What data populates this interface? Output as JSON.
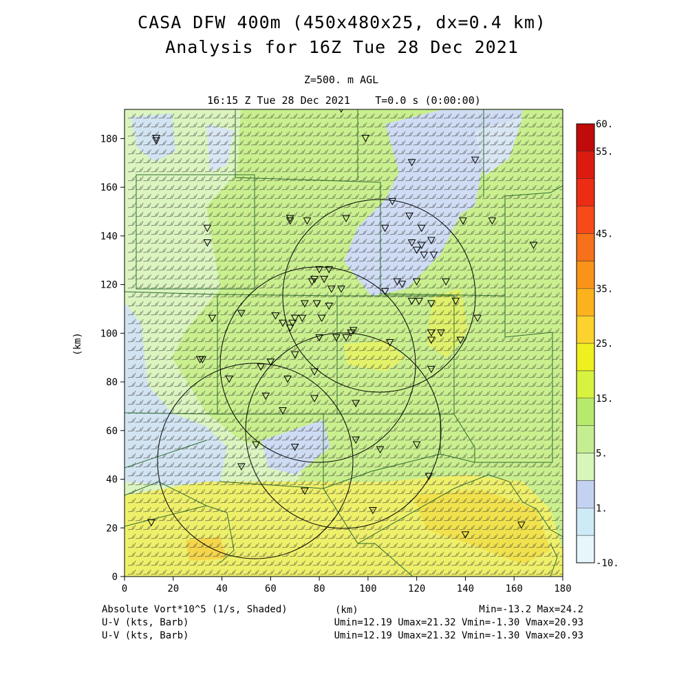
{
  "header": {
    "title_line1": "CASA DFW 400m (450x480x25, dx=0.4 km)",
    "title_line2": "Analysis for 16Z Tue 28 Dec 2021",
    "level": "Z=500. m AGL",
    "valid_time": "16:15 Z Tue 28 Dec 2021",
    "forecast_time": "T=0.0 s (0:00:00)"
  },
  "footer": {
    "field_label": "Absolute Vort*10^5 (1/s, Shaded)",
    "xunit_label": "(km)",
    "min_max": "Min=-13.2 Max=24.2",
    "wind1_label": "U-V (kts, Barb)",
    "wind1_stats": "Umin=12.19 Umax=21.32 Vmin=-1.30 Vmax=20.93",
    "wind2_label": "U-V (kts, Barb)",
    "wind2_stats": "Umin=12.19 Umax=21.32 Vmin=-1.30 Vmax=20.93"
  },
  "colorbar": {
    "levels": [
      "-10.",
      "",
      "1.",
      "",
      "5.",
      "",
      "15.",
      "",
      "25.",
      "",
      "35.",
      "",
      "45.",
      "",
      "",
      "55.",
      "60."
    ],
    "colors": [
      "#e6f6fb",
      "#cdeaf7",
      "#c4d2f2",
      "#d6f6ba",
      "#c5ee92",
      "#b6ea6d",
      "#d8f240",
      "#f0f020",
      "#fcd22e",
      "#fbb21c",
      "#f9931a",
      "#f7701a",
      "#f64a19",
      "#ec2d13",
      "#dc1b10",
      "#c00b0a"
    ]
  },
  "chart_data": {
    "type": "heatmap",
    "title": "CASA DFW 400m (450x480x25, dx=0.4 km) Analysis for 16Z Tue 28 Dec 2021",
    "field": "Absolute Vort*10^5 (1/s, Shaded)",
    "xlabel": "(km)",
    "ylabel": "(km)",
    "xlim": [
      0,
      180
    ],
    "ylim": [
      0,
      192
    ],
    "xticks": [
      "0",
      "20",
      "40",
      "60",
      "80",
      "100",
      "120",
      "140",
      "160",
      "180"
    ],
    "yticks": [
      "0",
      "20",
      "40",
      "60",
      "80",
      "100",
      "120",
      "140",
      "160",
      "180"
    ],
    "field_min": -13.2,
    "field_max": 24.2,
    "wind_barb_summary": {
      "umin": 12.19,
      "umax": 21.32,
      "vmin": -1.3,
      "vmax": 20.93,
      "units": "kts"
    },
    "regions": [
      {
        "label": "background",
        "value_class": "5 to 10",
        "color": "#c9ef8e"
      },
      {
        "label": "west low",
        "value_class": "1 to 5",
        "color": "#d9f4bb"
      },
      {
        "label": "northeast band",
        "value_class": "-10 to 1",
        "color": "#cfdcf4"
      },
      {
        "label": "south high",
        "value_class": "15 to 20",
        "color": "#eef065"
      }
    ],
    "radars": [
      {
        "cx": 98.5,
        "cy": 115,
        "r": 39.5
      },
      {
        "cx": 69,
        "cy": 87,
        "r": 40
      },
      {
        "cx": 80,
        "cy": 59,
        "r": 40
      },
      {
        "cx": 54,
        "cy": 47,
        "r": 40
      }
    ],
    "stations": [
      [
        13,
        180
      ],
      [
        13,
        179
      ],
      [
        99,
        180
      ],
      [
        89,
        192
      ],
      [
        118,
        170
      ],
      [
        144,
        171
      ],
      [
        110,
        154
      ],
      [
        107,
        143
      ],
      [
        117,
        148
      ],
      [
        68,
        147
      ],
      [
        68,
        146
      ],
      [
        34,
        143
      ],
      [
        34,
        137
      ],
      [
        91,
        147
      ],
      [
        75,
        146
      ],
      [
        122,
        143
      ],
      [
        126,
        138
      ],
      [
        122,
        136
      ],
      [
        139,
        146
      ],
      [
        151,
        146
      ],
      [
        127,
        132
      ],
      [
        123,
        132
      ],
      [
        120,
        134
      ],
      [
        118,
        137
      ],
      [
        80,
        126
      ],
      [
        84,
        126
      ],
      [
        78,
        122
      ],
      [
        82,
        122
      ],
      [
        77,
        121
      ],
      [
        85,
        118
      ],
      [
        89,
        118
      ],
      [
        74,
        112
      ],
      [
        79,
        112
      ],
      [
        84,
        111
      ],
      [
        112,
        121
      ],
      [
        114,
        120
      ],
      [
        120,
        121
      ],
      [
        107,
        117
      ],
      [
        118,
        113
      ],
      [
        121,
        113
      ],
      [
        126,
        112
      ],
      [
        132,
        121
      ],
      [
        136,
        113
      ],
      [
        62,
        107
      ],
      [
        69,
        104
      ],
      [
        70,
        106
      ],
      [
        73,
        106
      ],
      [
        68,
        102
      ],
      [
        65,
        104
      ],
      [
        81,
        106
      ],
      [
        93,
        100
      ],
      [
        94,
        101
      ],
      [
        80,
        98
      ],
      [
        91,
        98
      ],
      [
        87,
        98
      ],
      [
        70,
        91
      ],
      [
        60,
        88
      ],
      [
        48,
        108
      ],
      [
        36,
        106
      ],
      [
        32,
        89
      ],
      [
        31,
        89
      ],
      [
        43,
        81
      ],
      [
        56,
        86
      ],
      [
        109,
        96
      ],
      [
        126,
        97
      ],
      [
        126,
        100
      ],
      [
        130,
        100
      ],
      [
        138,
        97
      ],
      [
        145,
        106
      ],
      [
        168,
        136
      ],
      [
        126,
        85
      ],
      [
        78,
        84
      ],
      [
        67,
        81
      ],
      [
        58,
        74
      ],
      [
        78,
        73
      ],
      [
        95,
        71
      ],
      [
        65,
        68
      ],
      [
        70,
        53
      ],
      [
        95,
        56
      ],
      [
        105,
        52
      ],
      [
        120,
        54
      ],
      [
        54,
        54
      ],
      [
        48,
        45
      ],
      [
        74,
        35
      ],
      [
        102,
        27
      ],
      [
        125,
        41
      ],
      [
        140,
        17
      ],
      [
        163,
        21
      ],
      [
        11,
        22
      ]
    ],
    "state_lines_note": "county boundaries drawn as polylines"
  }
}
